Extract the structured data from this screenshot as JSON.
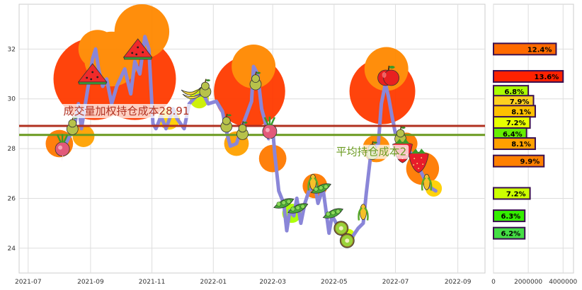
{
  "chart_data": [
    {
      "type": "line",
      "x_ticks": [
        "2021-07",
        "2021-09",
        "2021-11",
        "2022-01",
        "2022-03",
        "2022-05",
        "2022-07",
        "2022-09"
      ],
      "y_ticks": [
        24,
        26,
        28,
        30,
        32
      ],
      "ylim": [
        23,
        33.8
      ],
      "xlim": [
        "2021-06-22",
        "2022-09-28"
      ],
      "grid": true,
      "price_series": {
        "color": "#8a86d8",
        "points": [
          [
            "2021-08-05",
            28.0
          ],
          [
            "2021-08-10",
            28.4
          ],
          [
            "2021-08-16",
            28.9
          ],
          [
            "2021-08-20",
            29.8
          ],
          [
            "2021-08-23",
            28.8
          ],
          [
            "2021-08-26",
            29.6
          ],
          [
            "2021-08-30",
            30.6
          ],
          [
            "2021-09-03",
            31.6
          ],
          [
            "2021-09-06",
            32.0
          ],
          [
            "2021-09-09",
            31.2
          ],
          [
            "2021-09-13",
            30.5
          ],
          [
            "2021-09-17",
            30.8
          ],
          [
            "2021-09-22",
            29.8
          ],
          [
            "2021-09-27",
            30.5
          ],
          [
            "2021-10-05",
            31.2
          ],
          [
            "2021-10-11",
            30.2
          ],
          [
            "2021-10-15",
            31.5
          ],
          [
            "2021-10-20",
            31.0
          ],
          [
            "2021-10-25",
            32.5
          ],
          [
            "2021-10-29",
            32.0
          ],
          [
            "2021-11-02",
            29.0
          ],
          [
            "2021-11-05",
            28.8
          ],
          [
            "2021-11-10",
            29.3
          ],
          [
            "2021-11-15",
            28.8
          ],
          [
            "2021-11-22",
            29.6
          ],
          [
            "2021-11-26",
            29.2
          ],
          [
            "2021-12-03",
            28.8
          ],
          [
            "2021-12-08",
            29.8
          ],
          [
            "2021-12-15",
            30.1
          ],
          [
            "2021-12-22",
            30.2
          ],
          [
            "2021-12-27",
            29.8
          ],
          [
            "2022-01-04",
            29.9
          ],
          [
            "2022-01-10",
            29.5
          ],
          [
            "2022-01-14",
            28.7
          ],
          [
            "2022-01-18",
            28.1
          ],
          [
            "2022-01-24",
            28.2
          ],
          [
            "2022-01-28",
            28.7
          ],
          [
            "2022-02-08",
            29.9
          ],
          [
            "2022-02-10",
            31.3
          ],
          [
            "2022-02-14",
            31.0
          ],
          [
            "2022-02-18",
            29.6
          ],
          [
            "2022-02-22",
            29.0
          ],
          [
            "2022-02-25",
            28.4
          ],
          [
            "2022-03-01",
            28.8
          ],
          [
            "2022-03-03",
            27.8
          ],
          [
            "2022-03-07",
            26.3
          ],
          [
            "2022-03-10",
            26.0
          ],
          [
            "2022-03-12",
            25.8
          ],
          [
            "2022-03-15",
            24.7
          ],
          [
            "2022-03-18",
            25.5
          ],
          [
            "2022-03-22",
            25.3
          ],
          [
            "2022-03-25",
            26.0
          ],
          [
            "2022-03-29",
            25.0
          ],
          [
            "2022-04-02",
            25.8
          ],
          [
            "2022-04-06",
            26.3
          ],
          [
            "2022-04-12",
            26.5
          ],
          [
            "2022-04-15",
            25.8
          ],
          [
            "2022-04-20",
            26.4
          ],
          [
            "2022-04-26",
            24.6
          ],
          [
            "2022-04-29",
            25.3
          ],
          [
            "2022-05-06",
            24.8
          ],
          [
            "2022-05-11",
            24.4
          ],
          [
            "2022-05-16",
            24.3
          ],
          [
            "2022-05-20",
            24.5
          ],
          [
            "2022-05-25",
            24.8
          ],
          [
            "2022-05-30",
            25.0
          ],
          [
            "2022-06-02",
            26.2
          ],
          [
            "2022-06-06",
            27.6
          ],
          [
            "2022-06-10",
            28.0
          ],
          [
            "2022-06-14",
            28.2
          ],
          [
            "2022-06-17",
            29.8
          ],
          [
            "2022-06-21",
            30.6
          ],
          [
            "2022-06-24",
            30.1
          ],
          [
            "2022-06-28",
            29.2
          ],
          [
            "2022-07-01",
            28.6
          ],
          [
            "2022-07-06",
            28.3
          ],
          [
            "2022-07-11",
            28.0
          ],
          [
            "2022-07-15",
            27.9
          ],
          [
            "2022-07-20",
            27.6
          ],
          [
            "2022-07-26",
            27.1
          ],
          [
            "2022-08-01",
            26.6
          ],
          [
            "2022-08-06",
            26.4
          ],
          [
            "2022-08-10",
            26.3
          ]
        ]
      },
      "reference_lines": [
        {
          "value": 28.91,
          "color": "#b03020",
          "label": "成交量加权持仓成本28.91",
          "label_color": "#b03020",
          "label_at": "2021-08-05"
        },
        {
          "value": 28.55,
          "color": "#6a9a20",
          "label": "平均持仓成本2",
          "label_color": "#6a9a20",
          "label_at": "2022-05-03"
        }
      ],
      "blobs": [
        {
          "x": "2021-09-05",
          "y": 30.8,
          "r": 3.0,
          "color": "#ff3a00"
        },
        {
          "x": "2021-10-15",
          "y": 30.8,
          "r": 3.0,
          "color": "#ff3a00"
        },
        {
          "x": "2021-09-22",
          "y": 31.6,
          "r": 2.0,
          "color": "#ff8800"
        },
        {
          "x": "2021-10-22",
          "y": 32.7,
          "r": 2.0,
          "color": "#ff8800"
        },
        {
          "x": "2021-09-08",
          "y": 32.0,
          "r": 1.4,
          "color": "#ff8800"
        },
        {
          "x": "2021-08-01",
          "y": 28.2,
          "r": 1.0,
          "color": "#ff7a00"
        },
        {
          "x": "2021-08-25",
          "y": 28.5,
          "r": 0.8,
          "color": "#ffa200"
        },
        {
          "x": "2021-11-18",
          "y": 29.2,
          "r": 0.8,
          "color": "#ffd000"
        },
        {
          "x": "2021-12-18",
          "y": 30.0,
          "r": 0.7,
          "color": "#ccf000"
        },
        {
          "x": "2022-02-06",
          "y": 30.3,
          "r": 2.6,
          "color": "#ff3a00"
        },
        {
          "x": "2022-02-10",
          "y": 31.3,
          "r": 1.6,
          "color": "#ff8800"
        },
        {
          "x": "2022-01-24",
          "y": 28.2,
          "r": 0.9,
          "color": "#ffa200"
        },
        {
          "x": "2022-03-01",
          "y": 27.6,
          "r": 1.0,
          "color": "#ff7a00"
        },
        {
          "x": "2022-03-20",
          "y": 25.4,
          "r": 0.7,
          "color": "#aaff00"
        },
        {
          "x": "2022-04-12",
          "y": 26.5,
          "r": 0.9,
          "color": "#ff7a00"
        },
        {
          "x": "2022-05-15",
          "y": 24.5,
          "r": 0.5,
          "color": "#ccff00"
        },
        {
          "x": "2022-06-18",
          "y": 30.3,
          "r": 2.4,
          "color": "#ff3a00"
        },
        {
          "x": "2022-06-22",
          "y": 31.2,
          "r": 1.6,
          "color": "#ff8800"
        },
        {
          "x": "2022-06-12",
          "y": 28.0,
          "r": 1.0,
          "color": "#ff8800"
        },
        {
          "x": "2022-07-12",
          "y": 28.2,
          "r": 0.8,
          "color": "#ff7a00"
        },
        {
          "x": "2022-07-28",
          "y": 27.2,
          "r": 1.2,
          "color": "#ff7a00"
        },
        {
          "x": "2022-08-08",
          "y": 26.4,
          "r": 0.6,
          "color": "#ffd000"
        }
      ],
      "markers": [
        {
          "x": "2021-08-04",
          "y": 28.1,
          "kind": "radish"
        },
        {
          "x": "2021-08-14",
          "y": 28.9,
          "kind": "pear"
        },
        {
          "x": "2021-09-03",
          "y": 30.9,
          "kind": "watermelon"
        },
        {
          "x": "2021-10-18",
          "y": 31.9,
          "kind": "watermelon"
        },
        {
          "x": "2021-12-10",
          "y": 30.3,
          "kind": "banana"
        },
        {
          "x": "2021-12-24",
          "y": 30.4,
          "kind": "pear"
        },
        {
          "x": "2022-01-14",
          "y": 29.0,
          "kind": "pear"
        },
        {
          "x": "2022-01-30",
          "y": 28.7,
          "kind": "pear"
        },
        {
          "x": "2022-02-12",
          "y": 30.7,
          "kind": "pear"
        },
        {
          "x": "2022-02-26",
          "y": 28.8,
          "kind": "radish"
        },
        {
          "x": "2022-03-12",
          "y": 25.8,
          "kind": "pea"
        },
        {
          "x": "2022-03-26",
          "y": 25.6,
          "kind": "pea"
        },
        {
          "x": "2022-04-10",
          "y": 26.6,
          "kind": "corn"
        },
        {
          "x": "2022-04-18",
          "y": 26.4,
          "kind": "pea"
        },
        {
          "x": "2022-04-30",
          "y": 25.4,
          "kind": "pea"
        },
        {
          "x": "2022-05-08",
          "y": 24.8,
          "kind": "kiwi"
        },
        {
          "x": "2022-05-14",
          "y": 24.3,
          "kind": "kiwi"
        },
        {
          "x": "2022-05-30",
          "y": 25.4,
          "kind": "corn"
        },
        {
          "x": "2022-06-08",
          "y": 27.9,
          "kind": "pear"
        },
        {
          "x": "2022-06-24",
          "y": 30.9,
          "kind": "apple"
        },
        {
          "x": "2022-07-06",
          "y": 28.5,
          "kind": "pear"
        },
        {
          "x": "2022-07-08",
          "y": 28.0,
          "kind": "strawberry"
        },
        {
          "x": "2022-07-24",
          "y": 27.6,
          "kind": "strawberry"
        },
        {
          "x": "2022-08-01",
          "y": 26.6,
          "kind": "corn"
        }
      ]
    },
    {
      "type": "bar",
      "orientation": "horizontal",
      "x_ticks": [
        0,
        2000000,
        4000000
      ],
      "xlim": [
        0,
        4600000
      ],
      "bars": [
        {
          "y": 32.0,
          "value": 3600000,
          "label": "12.4%",
          "color": "#ff6a00"
        },
        {
          "y": 30.9,
          "value": 4000000,
          "label": "13.6%",
          "color": "#ff2200"
        },
        {
          "y": 30.3,
          "value": 2000000,
          "label": "6.8%",
          "color": "#aaff00"
        },
        {
          "y": 29.9,
          "value": 2300000,
          "label": "7.9%",
          "color": "#ffd020"
        },
        {
          "y": 29.5,
          "value": 2400000,
          "label": "8.1%",
          "color": "#ffc000"
        },
        {
          "y": 29.05,
          "value": 2100000,
          "label": "7.2%",
          "color": "#e8ff00"
        },
        {
          "y": 28.6,
          "value": 1900000,
          "label": "6.4%",
          "color": "#66ee00"
        },
        {
          "y": 28.2,
          "value": 2400000,
          "label": "8.1%",
          "color": "#ffa000"
        },
        {
          "y": 27.5,
          "value": 2900000,
          "label": "9.9%",
          "color": "#ff8000"
        },
        {
          "y": 26.2,
          "value": 2100000,
          "label": "7.2%",
          "color": "#ccff00"
        },
        {
          "y": 25.3,
          "value": 1800000,
          "label": "6.3%",
          "color": "#33ee00"
        },
        {
          "y": 24.6,
          "value": 1800000,
          "label": "6.2%",
          "color": "#44dd44"
        }
      ]
    }
  ]
}
